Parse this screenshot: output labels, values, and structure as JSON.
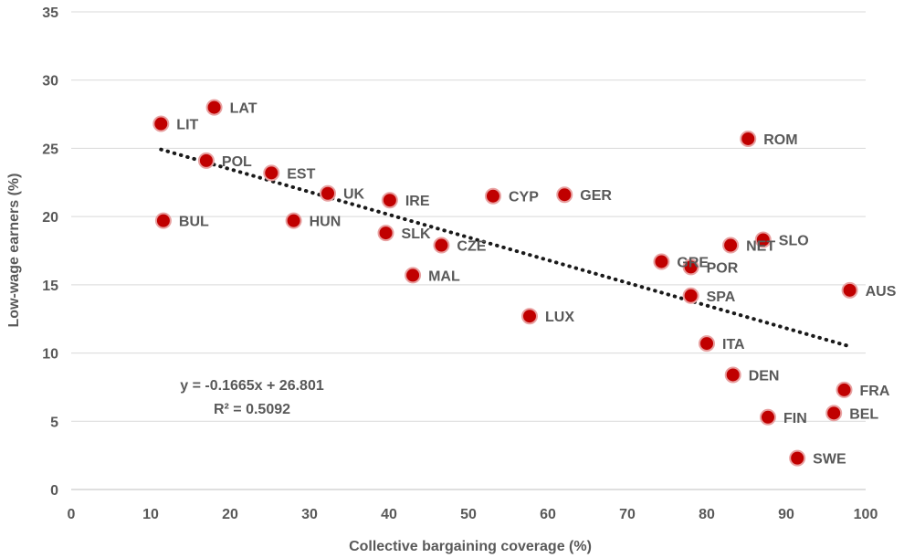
{
  "chart_data": {
    "type": "scatter",
    "xlabel": "Collective bargaining coverage (%)",
    "ylabel": "Low-wage earners (%)",
    "xlim": [
      0,
      100
    ],
    "ylim": [
      0,
      35
    ],
    "xticks": [
      0,
      10,
      20,
      30,
      40,
      50,
      60,
      70,
      80,
      90,
      100
    ],
    "yticks": [
      0,
      5,
      10,
      15,
      20,
      25,
      30,
      35
    ],
    "grid": "horizontal",
    "points": [
      {
        "label": "LAT",
        "x": 18.0,
        "y": 28.0
      },
      {
        "label": "LIT",
        "x": 11.3,
        "y": 26.8
      },
      {
        "label": "POL",
        "x": 17.0,
        "y": 24.1
      },
      {
        "label": "EST",
        "x": 25.2,
        "y": 23.2
      },
      {
        "label": "UK",
        "x": 32.3,
        "y": 21.7
      },
      {
        "label": "IRE",
        "x": 40.1,
        "y": 21.2
      },
      {
        "label": "BUL",
        "x": 11.6,
        "y": 19.7
      },
      {
        "label": "HUN",
        "x": 28.0,
        "y": 19.7
      },
      {
        "label": "SLK",
        "x": 39.6,
        "y": 18.8
      },
      {
        "label": "CZE",
        "x": 46.6,
        "y": 17.9
      },
      {
        "label": "MAL",
        "x": 43.0,
        "y": 15.7
      },
      {
        "label": "CYP",
        "x": 53.1,
        "y": 21.5
      },
      {
        "label": "GER",
        "x": 62.1,
        "y": 21.6
      },
      {
        "label": "LUX",
        "x": 57.7,
        "y": 12.7
      },
      {
        "label": "ROM",
        "x": 85.2,
        "y": 25.7
      },
      {
        "label": "NET",
        "x": 83.0,
        "y": 17.9
      },
      {
        "label": "SLO",
        "x": 87.1,
        "y": 18.3
      },
      {
        "label": "GRE",
        "x": 74.3,
        "y": 16.7
      },
      {
        "label": "POR",
        "x": 78.0,
        "y": 16.3
      },
      {
        "label": "SPA",
        "x": 78.0,
        "y": 14.2
      },
      {
        "label": "AUS",
        "x": 98.0,
        "y": 14.6
      },
      {
        "label": "ITA",
        "x": 80.0,
        "y": 10.7
      },
      {
        "label": "DEN",
        "x": 83.3,
        "y": 8.4
      },
      {
        "label": "FRA",
        "x": 97.3,
        "y": 7.3
      },
      {
        "label": "BEL",
        "x": 96.0,
        "y": 5.6
      },
      {
        "label": "FIN",
        "x": 87.7,
        "y": 5.3
      },
      {
        "label": "SWE",
        "x": 91.4,
        "y": 2.3
      }
    ],
    "trendline": {
      "type": "linear",
      "slope": -0.1665,
      "intercept": 26.801,
      "x_range": [
        11.3,
        98.0
      ],
      "equation": "y = -0.1665x + 26.801",
      "r_squared": "R² = 0.5092"
    }
  }
}
